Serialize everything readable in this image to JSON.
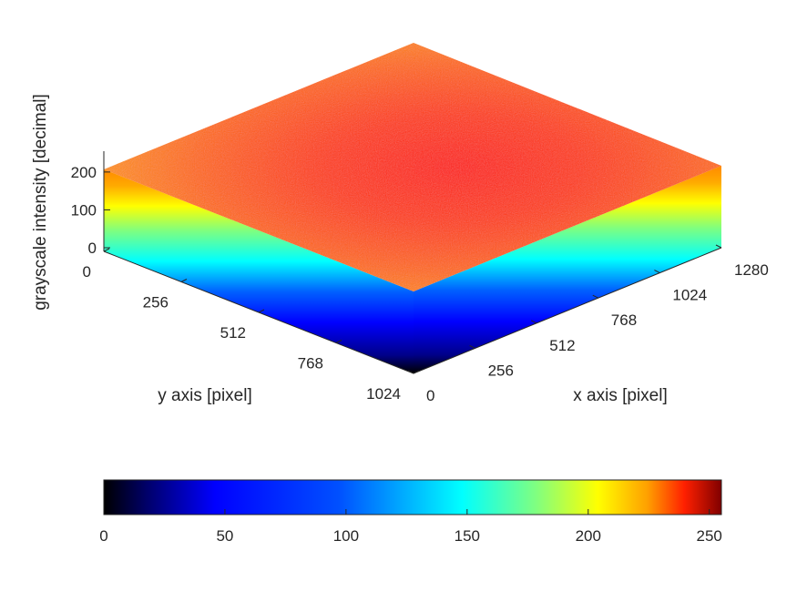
{
  "chart_data": {
    "type": "surface",
    "title": "",
    "xlabel": "x axis [pixel]",
    "ylabel": "y axis [pixel]",
    "zlabel": "grayscale intensity [decimal]",
    "x_ticks": [
      "0",
      "256",
      "512",
      "768",
      "1024",
      "1280"
    ],
    "y_ticks": [
      "0",
      "256",
      "512",
      "768",
      "1024"
    ],
    "z_ticks": [
      "0",
      "100",
      "200"
    ],
    "xlim": [
      0,
      1280
    ],
    "ylim": [
      0,
      1024
    ],
    "zlim": [
      0,
      255
    ],
    "surface": {
      "description_values": {
        "edge_intensity": 205,
        "center_intensity": 240
      }
    },
    "colorbar": {
      "colormap": "jet",
      "ticks": [
        "0",
        "50",
        "100",
        "150",
        "200",
        "250"
      ],
      "range": [
        0,
        255
      ],
      "placement": "bottom"
    },
    "grid": false
  }
}
